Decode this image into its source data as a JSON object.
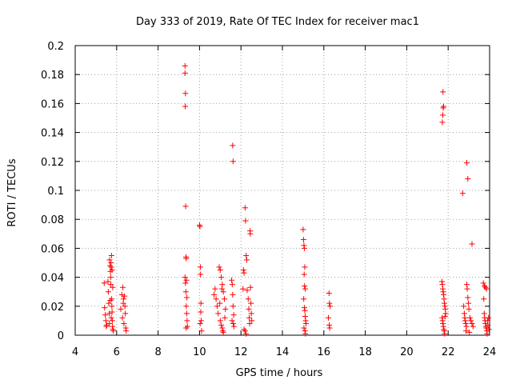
{
  "chart_data": {
    "type": "scatter",
    "title": "Day 333 of 2019, Rate Of TEC Index for receiver mac1",
    "xlabel": "GPS time / hours",
    "ylabel": "ROTI / TECUs",
    "xlim": [
      4,
      24
    ],
    "ylim": [
      0,
      0.2
    ],
    "grid": true,
    "marker": "+",
    "marker_color": "#ff0000",
    "x_ticks": [
      4,
      6,
      8,
      10,
      12,
      14,
      16,
      18,
      20,
      22,
      24
    ],
    "x_tick_labels": [
      "4",
      "6",
      "8",
      "10",
      "12",
      "14",
      "16",
      "18",
      "20",
      "22",
      "24"
    ],
    "y_ticks": [
      0,
      0.02,
      0.04,
      0.06,
      0.08,
      0.1,
      0.12,
      0.14,
      0.16,
      0.18,
      0.2
    ],
    "y_tick_labels": [
      "0",
      "0.02",
      "0.04",
      "0.06",
      "0.08",
      "0.1",
      "0.12",
      "0.14",
      "0.16",
      "0.18",
      "0.2"
    ],
    "series": [
      {
        "name": "ROTI",
        "points": [
          [
            5.4,
            0.036
          ],
          [
            5.42,
            0.019
          ],
          [
            5.45,
            0.014
          ],
          [
            5.48,
            0.01
          ],
          [
            5.5,
            0.006
          ],
          [
            5.52,
            0.007
          ],
          [
            5.58,
            0.037
          ],
          [
            5.6,
            0.03
          ],
          [
            5.62,
            0.022
          ],
          [
            5.64,
            0.015
          ],
          [
            5.65,
            0.008
          ],
          [
            5.66,
            0.052
          ],
          [
            5.68,
            0.048
          ],
          [
            5.7,
            0.044
          ],
          [
            5.71,
            0.04
          ],
          [
            5.72,
            0.035
          ],
          [
            5.73,
            0.05
          ],
          [
            5.74,
            0.047
          ],
          [
            5.75,
            0.055
          ],
          [
            5.76,
            0.025
          ],
          [
            5.77,
            0.02
          ],
          [
            5.78,
            0.016
          ],
          [
            5.79,
            0.01
          ],
          [
            5.8,
            0.006
          ],
          [
            5.82,
            0.004
          ],
          [
            5.84,
            0.003
          ],
          [
            5.69,
            0.024
          ],
          [
            5.74,
            0.012
          ],
          [
            5.78,
            0.045
          ],
          [
            5.81,
            0.033
          ],
          [
            6.2,
            0.018
          ],
          [
            6.25,
            0.028
          ],
          [
            6.28,
            0.012
          ],
          [
            6.3,
            0.033
          ],
          [
            6.32,
            0.022
          ],
          [
            6.35,
            0.008
          ],
          [
            6.38,
            0.027
          ],
          [
            6.4,
            0.02
          ],
          [
            6.42,
            0.015
          ],
          [
            6.44,
            0.005
          ],
          [
            6.46,
            0.003
          ],
          [
            6.33,
            0.025
          ],
          [
            9.3,
            0.186
          ],
          [
            9.3,
            0.181
          ],
          [
            9.32,
            0.167
          ],
          [
            9.31,
            0.158
          ],
          [
            9.33,
            0.089
          ],
          [
            9.35,
            0.054
          ],
          [
            9.36,
            0.053
          ],
          [
            9.3,
            0.04
          ],
          [
            9.32,
            0.036
          ],
          [
            9.34,
            0.03
          ],
          [
            9.36,
            0.02
          ],
          [
            9.38,
            0.015
          ],
          [
            9.4,
            0.01
          ],
          [
            9.42,
            0.006
          ],
          [
            9.35,
            0.005
          ],
          [
            9.37,
            0.038
          ],
          [
            9.39,
            0.026
          ],
          [
            10.0,
            0.076
          ],
          [
            10.02,
            0.075
          ],
          [
            10.04,
            0.047
          ],
          [
            10.05,
            0.042
          ],
          [
            10.07,
            0.022
          ],
          [
            10.06,
            0.016
          ],
          [
            10.08,
            0.01
          ],
          [
            10.1,
            0.003
          ],
          [
            10.03,
            0.008
          ],
          [
            10.7,
            0.028
          ],
          [
            10.75,
            0.032
          ],
          [
            10.8,
            0.025
          ],
          [
            10.85,
            0.02
          ],
          [
            10.9,
            0.015
          ],
          [
            10.95,
            0.047
          ],
          [
            11.0,
            0.045
          ],
          [
            11.05,
            0.04
          ],
          [
            11.1,
            0.035
          ],
          [
            11.15,
            0.03
          ],
          [
            11.0,
            0.01
          ],
          [
            11.05,
            0.007
          ],
          [
            11.1,
            0.005
          ],
          [
            11.12,
            0.003
          ],
          [
            11.15,
            0.002
          ],
          [
            11.2,
            0.025
          ],
          [
            11.25,
            0.018
          ],
          [
            11.22,
            0.012
          ],
          [
            10.98,
            0.022
          ],
          [
            11.08,
            0.032
          ],
          [
            11.6,
            0.131
          ],
          [
            11.62,
            0.12
          ],
          [
            11.55,
            0.038
          ],
          [
            11.58,
            0.035
          ],
          [
            11.6,
            0.028
          ],
          [
            11.62,
            0.02
          ],
          [
            11.65,
            0.014
          ],
          [
            11.63,
            0.008
          ],
          [
            11.66,
            0.006
          ],
          [
            11.57,
            0.01
          ],
          [
            12.1,
            0.032
          ],
          [
            12.12,
            0.045
          ],
          [
            12.15,
            0.043
          ],
          [
            12.2,
            0.088
          ],
          [
            12.22,
            0.079
          ],
          [
            12.25,
            0.055
          ],
          [
            12.28,
            0.052
          ],
          [
            12.3,
            0.031
          ],
          [
            12.35,
            0.025
          ],
          [
            12.38,
            0.018
          ],
          [
            12.4,
            0.012
          ],
          [
            12.42,
            0.008
          ],
          [
            12.44,
            0.072
          ],
          [
            12.45,
            0.07
          ],
          [
            12.46,
            0.033
          ],
          [
            12.48,
            0.022
          ],
          [
            12.5,
            0.015
          ],
          [
            12.52,
            0.01
          ],
          [
            12.15,
            0.004
          ],
          [
            12.2,
            0.003
          ],
          [
            12.25,
            0.001
          ],
          [
            15.0,
            0.073
          ],
          [
            15.02,
            0.066
          ],
          [
            15.04,
            0.062
          ],
          [
            15.06,
            0.06
          ],
          [
            15.08,
            0.047
          ],
          [
            15.05,
            0.042
          ],
          [
            15.07,
            0.034
          ],
          [
            15.1,
            0.032
          ],
          [
            15.03,
            0.025
          ],
          [
            15.06,
            0.019
          ],
          [
            15.08,
            0.017
          ],
          [
            15.1,
            0.013
          ],
          [
            15.12,
            0.01
          ],
          [
            15.14,
            0.008
          ],
          [
            15.04,
            0.005
          ],
          [
            15.09,
            0.003
          ],
          [
            15.11,
            0.001
          ],
          [
            16.25,
            0.029
          ],
          [
            16.27,
            0.022
          ],
          [
            16.3,
            0.02
          ],
          [
            16.22,
            0.012
          ],
          [
            16.26,
            0.007
          ],
          [
            16.28,
            0.005
          ],
          [
            21.75,
            0.168
          ],
          [
            21.78,
            0.158
          ],
          [
            21.76,
            0.157
          ],
          [
            21.74,
            0.152
          ],
          [
            21.72,
            0.147
          ],
          [
            21.7,
            0.037
          ],
          [
            21.72,
            0.035
          ],
          [
            21.74,
            0.032
          ],
          [
            21.76,
            0.03
          ],
          [
            21.78,
            0.028
          ],
          [
            21.8,
            0.025
          ],
          [
            21.82,
            0.022
          ],
          [
            21.84,
            0.02
          ],
          [
            21.86,
            0.018
          ],
          [
            21.88,
            0.015
          ],
          [
            21.71,
            0.012
          ],
          [
            21.73,
            0.01
          ],
          [
            21.75,
            0.008
          ],
          [
            21.77,
            0.006
          ],
          [
            21.79,
            0.004
          ],
          [
            21.81,
            0.003
          ],
          [
            21.83,
            0.001
          ],
          [
            21.85,
            0.013
          ],
          [
            22.7,
            0.098
          ],
          [
            22.9,
            0.119
          ],
          [
            22.95,
            0.108
          ],
          [
            23.15,
            0.063
          ],
          [
            22.75,
            0.02
          ],
          [
            22.78,
            0.015
          ],
          [
            22.8,
            0.012
          ],
          [
            22.82,
            0.01
          ],
          [
            22.85,
            0.008
          ],
          [
            22.88,
            0.006
          ],
          [
            22.9,
            0.035
          ],
          [
            22.92,
            0.032
          ],
          [
            22.95,
            0.026
          ],
          [
            22.98,
            0.022
          ],
          [
            23.0,
            0.018
          ],
          [
            23.05,
            0.012
          ],
          [
            23.1,
            0.01
          ],
          [
            23.15,
            0.008
          ],
          [
            23.2,
            0.006
          ],
          [
            22.86,
            0.003
          ],
          [
            23.02,
            0.002
          ],
          [
            23.7,
            0.036
          ],
          [
            23.75,
            0.034
          ],
          [
            23.8,
            0.033
          ],
          [
            23.85,
            0.032
          ],
          [
            23.72,
            0.025
          ],
          [
            23.74,
            0.015
          ],
          [
            23.76,
            0.012
          ],
          [
            23.78,
            0.01
          ],
          [
            23.8,
            0.008
          ],
          [
            23.82,
            0.006
          ],
          [
            23.84,
            0.005
          ],
          [
            23.86,
            0.003
          ],
          [
            23.88,
            0.001
          ],
          [
            23.9,
            0.01
          ],
          [
            23.92,
            0.007
          ],
          [
            23.95,
            0.012
          ],
          [
            23.97,
            0.004
          ]
        ]
      }
    ]
  }
}
